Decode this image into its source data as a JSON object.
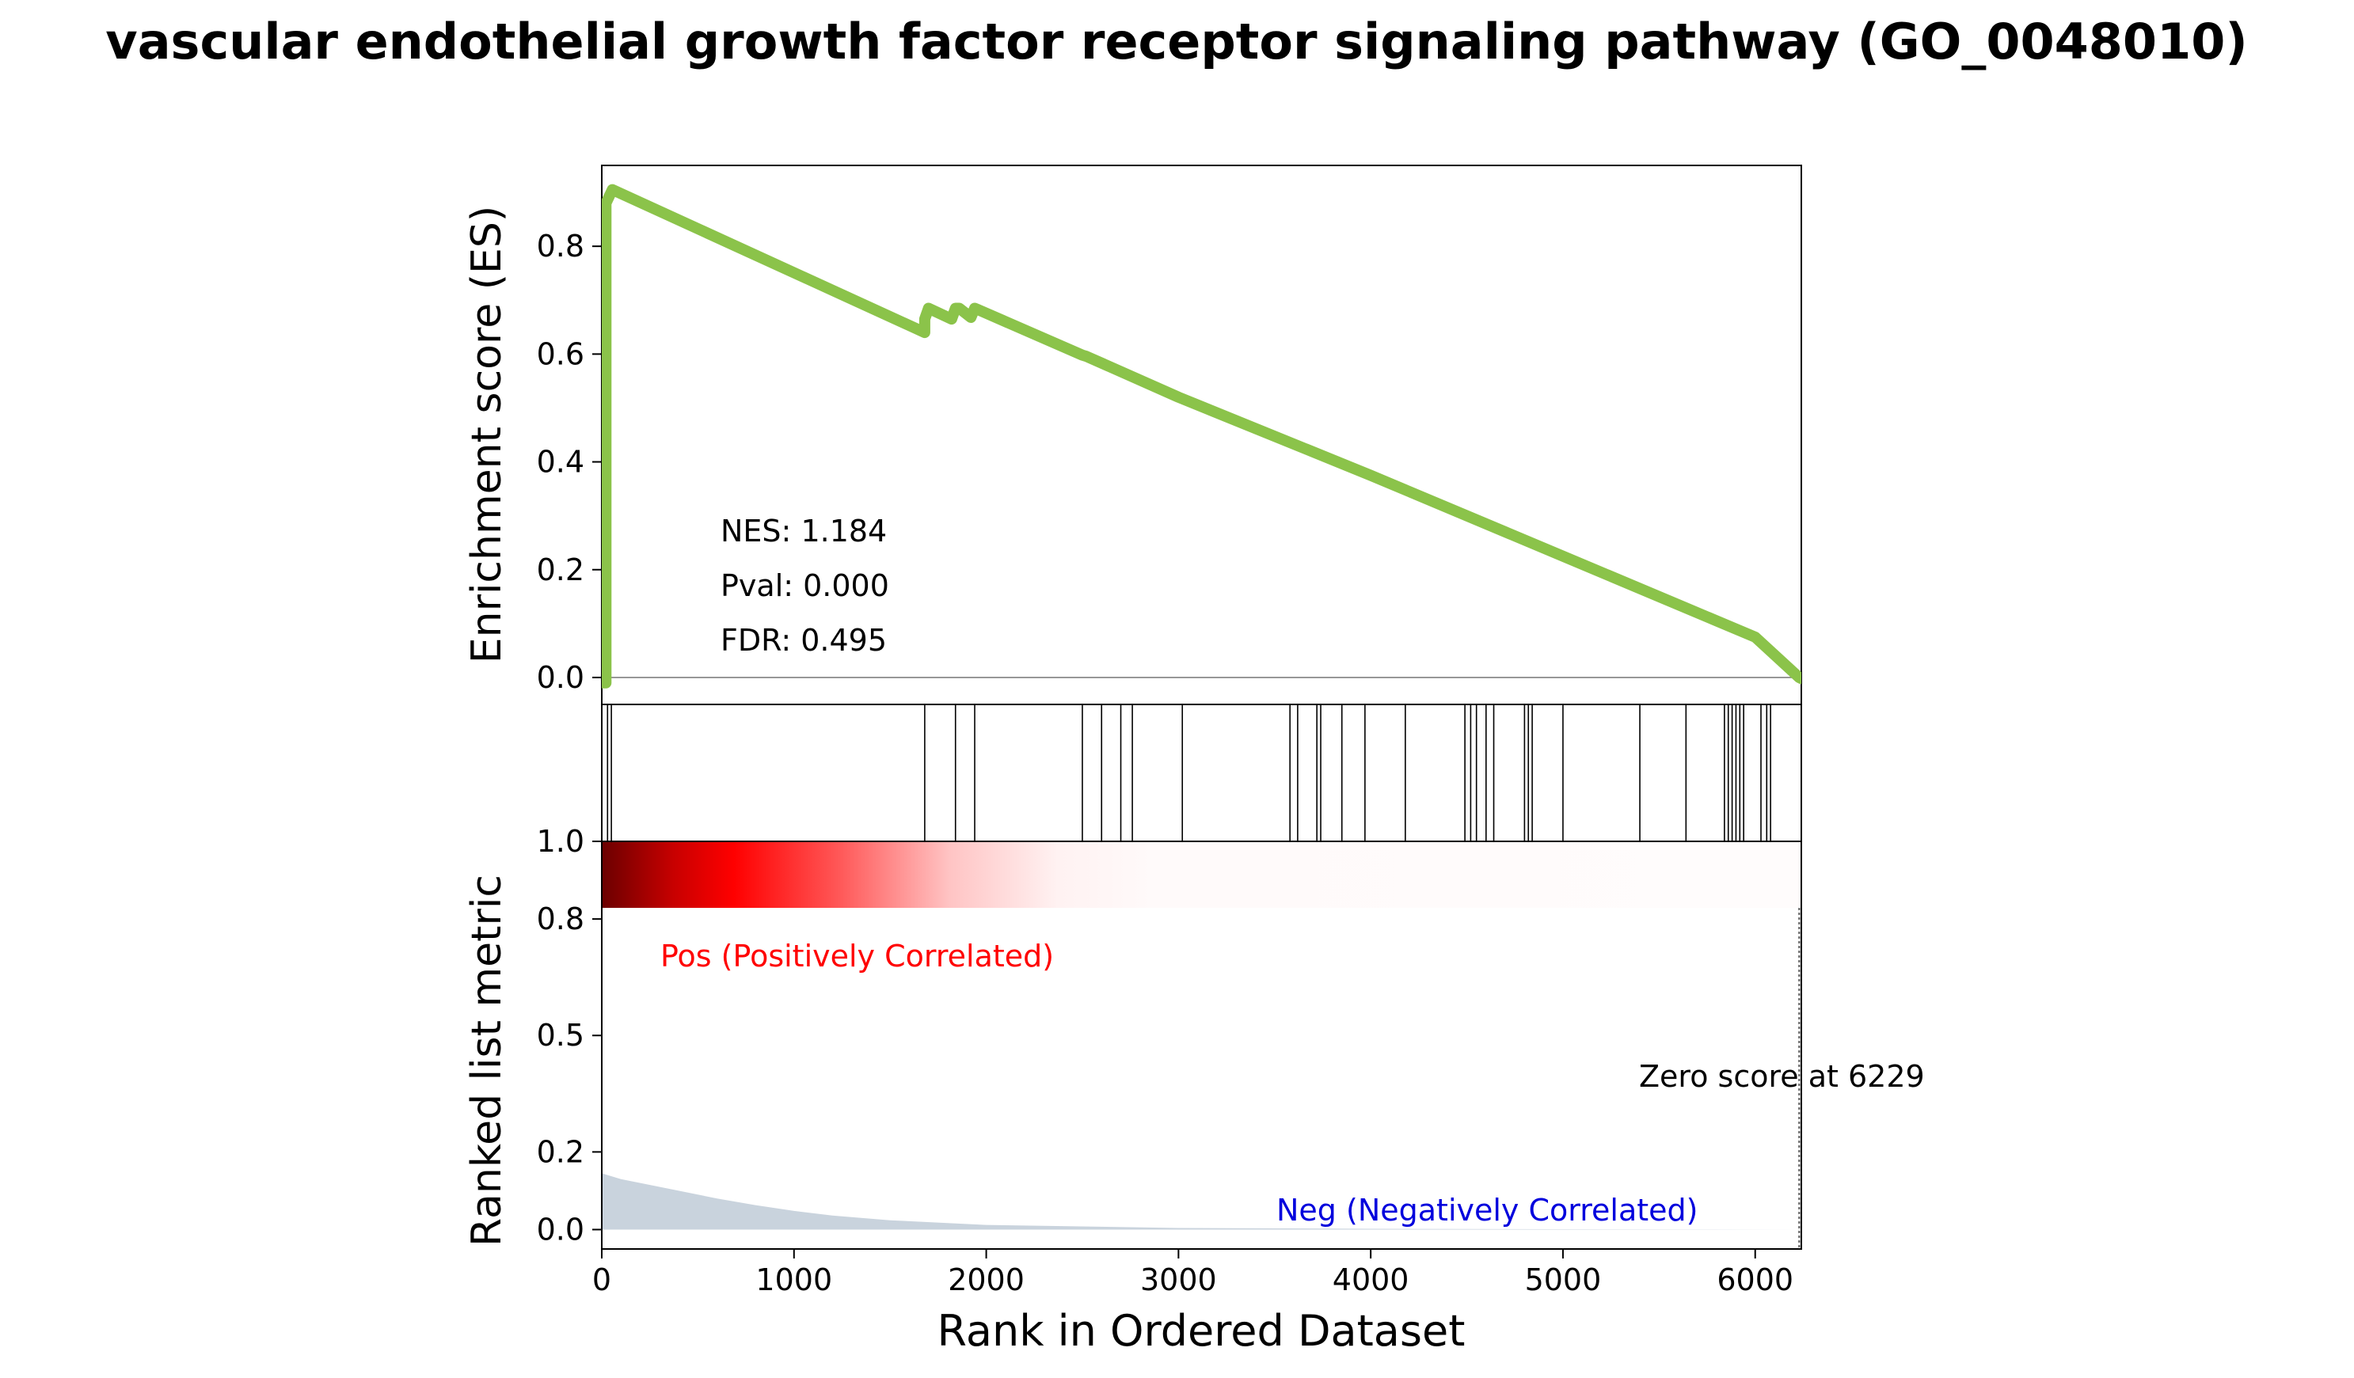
{
  "title": "vascular endothelial growth factor receptor signaling pathway (GO_0048010)",
  "stats": {
    "nes": "NES: 1.184",
    "pval": "Pval: 0.000",
    "fdr": "FDR: 0.495"
  },
  "chart_data": {
    "type": "line",
    "title": "vascular endothelial growth factor receptor signaling pathway (GO_0048010)",
    "xlabel": "Rank in Ordered Dataset",
    "xlim": [
      0,
      6240
    ],
    "x_ticks": [
      "0",
      "1000",
      "2000",
      "3000",
      "4000",
      "5000",
      "6000"
    ],
    "x_tick_values": [
      0,
      1000,
      2000,
      3000,
      4000,
      5000,
      6000
    ],
    "es_panel": {
      "ylabel": "Enrichment score (ES)",
      "ylim": [
        -0.05,
        0.95
      ],
      "y_ticks": [
        "0.0",
        "0.2",
        "0.4",
        "0.6",
        "0.8"
      ],
      "y_tick_values": [
        0.0,
        0.2,
        0.4,
        0.6,
        0.8
      ],
      "zero_line": true,
      "line_color": "#8bc34a",
      "x": [
        0,
        22,
        22,
        55,
        1680,
        1680,
        1700,
        1820,
        1840,
        1860,
        1920,
        1940,
        1960,
        2500,
        2520,
        3000,
        4000,
        5000,
        6000,
        6229,
        6240
      ],
      "y": [
        -0.01,
        -0.01,
        0.88,
        0.905,
        0.64,
        0.665,
        0.685,
        0.665,
        0.685,
        0.685,
        0.668,
        0.685,
        0.682,
        0.598,
        0.596,
        0.52,
        0.375,
        0.225,
        0.075,
        0.0,
        -0.002
      ]
    },
    "hits_panel": {
      "positions": [
        30,
        50,
        1680,
        1840,
        1940,
        2500,
        2600,
        2700,
        2760,
        3020,
        3580,
        3620,
        3720,
        3740,
        3850,
        3970,
        4180,
        4490,
        4520,
        4550,
        4600,
        4640,
        4800,
        4820,
        4840,
        5000,
        5400,
        5640,
        5840,
        5860,
        5880,
        5900,
        5920,
        5940,
        6030,
        6060,
        6080
      ]
    },
    "rank_panel": {
      "ylabel": "Ranked list metric",
      "ylim": [
        -0.05,
        1.0
      ],
      "y_ticks": [
        "0.0",
        "0.2",
        "0.5",
        "0.8",
        "1.0"
      ],
      "y_tick_values": [
        0.0,
        0.2,
        0.5,
        0.8,
        1.0
      ],
      "fill_color": "#c9d3dd",
      "x": [
        0,
        100,
        200,
        400,
        600,
        800,
        1000,
        1200,
        1500,
        2000,
        3000,
        4000,
        5000,
        6229
      ],
      "y": [
        0.145,
        0.13,
        0.12,
        0.1,
        0.08,
        0.063,
        0.048,
        0.036,
        0.024,
        0.012,
        0.004,
        0.002,
        0.001,
        0.0
      ],
      "zero_score_rank": 6229,
      "zero_score_label": "Zero score at 6229",
      "pos_label": "Pos (Positively Correlated)",
      "pos_color": "#ff0000",
      "neg_label": "Neg (Negatively Correlated)",
      "neg_color": "#0000dd",
      "heatmap_colors": [
        "#6b0000",
        "#ff0000",
        "#ffffff"
      ]
    }
  }
}
